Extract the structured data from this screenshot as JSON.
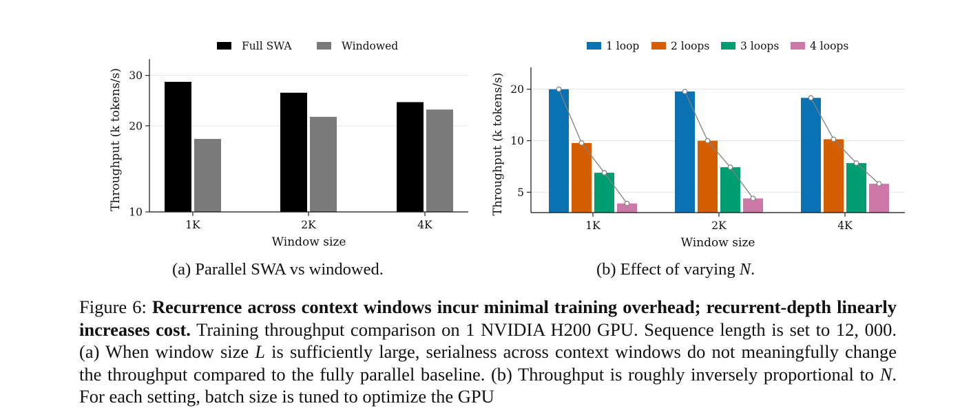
{
  "chart_data": [
    {
      "type": "bar",
      "scale": "log",
      "categories": [
        "1K",
        "2K",
        "4K"
      ],
      "series": [
        {
          "name": "Full SWA",
          "color": "#000000",
          "values": [
            28.5,
            26.1,
            24.2
          ]
        },
        {
          "name": "Windowed",
          "color": "#7a7a7a",
          "values": [
            18.0,
            21.5,
            22.8
          ]
        }
      ],
      "xlabel": "Window size",
      "ylabel": "Throughput (k tokens/s)",
      "ylim": [
        10,
        32
      ],
      "yticks": [
        10,
        20,
        30
      ],
      "legend": "top-center",
      "grid": true,
      "caption": "(a) Parallel SWA vs windowed."
    },
    {
      "type": "bar",
      "scale": "log",
      "categories": [
        "1K",
        "2K",
        "4K"
      ],
      "series": [
        {
          "name": "1 loop",
          "color": "#0a72b2",
          "values": [
            20.0,
            19.4,
            17.8
          ]
        },
        {
          "name": "2 loops",
          "color": "#d55e00",
          "values": [
            9.7,
            10.0,
            10.2
          ]
        },
        {
          "name": "3 loops",
          "color": "#009e73",
          "values": [
            6.5,
            7.0,
            7.4
          ]
        },
        {
          "name": "4 loops",
          "color": "#cc79a7",
          "values": [
            4.3,
            4.6,
            5.6
          ]
        }
      ],
      "connect_points": true,
      "connector_color": "#808080",
      "xlabel": "Window size",
      "ylabel": "Throughput (k tokens/s)",
      "ylim": [
        3.8,
        24
      ],
      "yticks": [
        5,
        10,
        20
      ],
      "legend": "top-center",
      "grid": true,
      "caption_prefix": "(b) Effect of varying ",
      "caption_var": "N",
      "caption_suffix": "."
    }
  ],
  "caption": {
    "label": "Figure 6: ",
    "bold": "Recurrence across context windows incur minimal training overhead; recurrent-depth linearly increases cost.",
    "text1": " Training throughput comparison on 1 NVIDIA H200 GPU. Sequence length is set to ",
    "num": "12, 000",
    "text2": ". (a) When window size ",
    "var_L": "L",
    "text3": " is sufficiently large, serialness across context windows do not meaningfully change the throughput compared to the fully parallel baseline. (b) Throughput is roughly inversely proportional to ",
    "var_N": "N",
    "text4": ". For each setting, batch size is tuned to optimize the GPU"
  }
}
